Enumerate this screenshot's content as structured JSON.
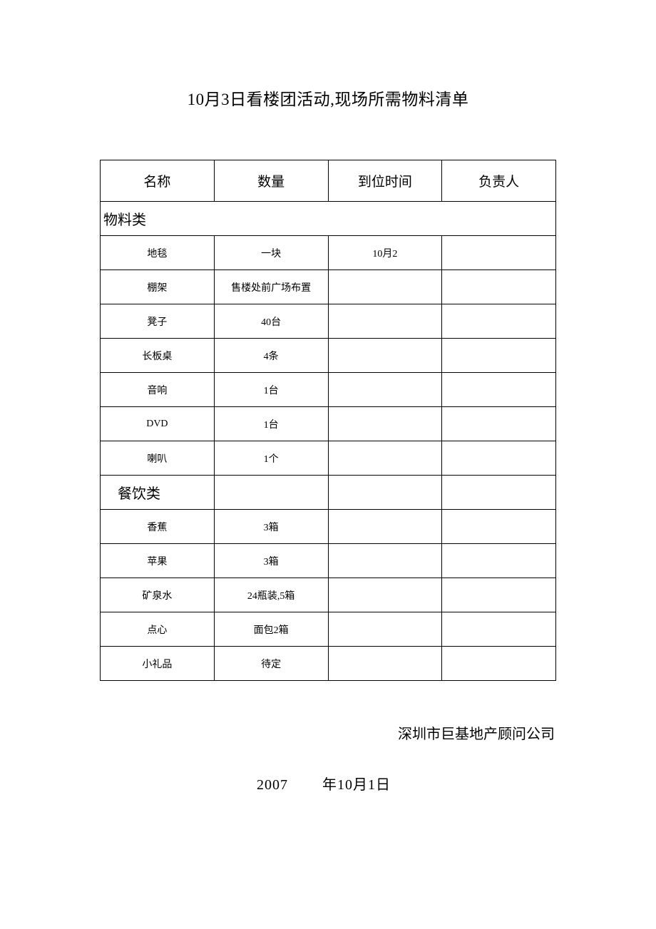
{
  "title": "10月3日看楼团活动,现场所需物料清单",
  "table": {
    "columns": [
      "名称",
      "数量",
      "到位时间",
      "负责人"
    ],
    "column_widths": [
      "25%",
      "25%",
      "25%",
      "25%"
    ],
    "border_color": "#000000",
    "header_fontsize": 19,
    "section_fontsize": 20,
    "row_fontsize": 14,
    "sections": [
      {
        "label": "物料类",
        "indent": false,
        "rows": [
          {
            "name": "地毯",
            "qty": "一块",
            "time": "10月2",
            "owner": ""
          },
          {
            "name": "棚架",
            "qty": "售楼处前广场布置",
            "time": "",
            "owner": ""
          },
          {
            "name": "凳子",
            "qty": "40台",
            "time": "",
            "owner": ""
          },
          {
            "name": "长板桌",
            "qty": "4条",
            "time": "",
            "owner": ""
          },
          {
            "name": "音响",
            "qty": "1台",
            "time": "",
            "owner": ""
          },
          {
            "name": "DVD",
            "qty": "1台",
            "time": "",
            "owner": ""
          },
          {
            "name": "喇叭",
            "qty": "1个",
            "time": "",
            "owner": ""
          }
        ]
      },
      {
        "label": "餐饮类",
        "indent": true,
        "rows": [
          {
            "name": "香蕉",
            "qty": "3箱",
            "time": "",
            "owner": ""
          },
          {
            "name": "苹果",
            "qty": "3箱",
            "time": "",
            "owner": ""
          },
          {
            "name": "矿泉水",
            "qty": "24瓶装,5箱",
            "time": "",
            "owner": ""
          },
          {
            "name": "点心",
            "qty": "面包2箱",
            "time": "",
            "owner": ""
          },
          {
            "name": "小礼品",
            "qty": "待定",
            "time": "",
            "owner": ""
          }
        ]
      }
    ]
  },
  "footer": {
    "company": "深圳市巨基地产顾问公司",
    "date_year": "2007",
    "date_rest": "年10月1日"
  },
  "colors": {
    "background": "#ffffff",
    "text": "#000000",
    "border": "#000000"
  }
}
